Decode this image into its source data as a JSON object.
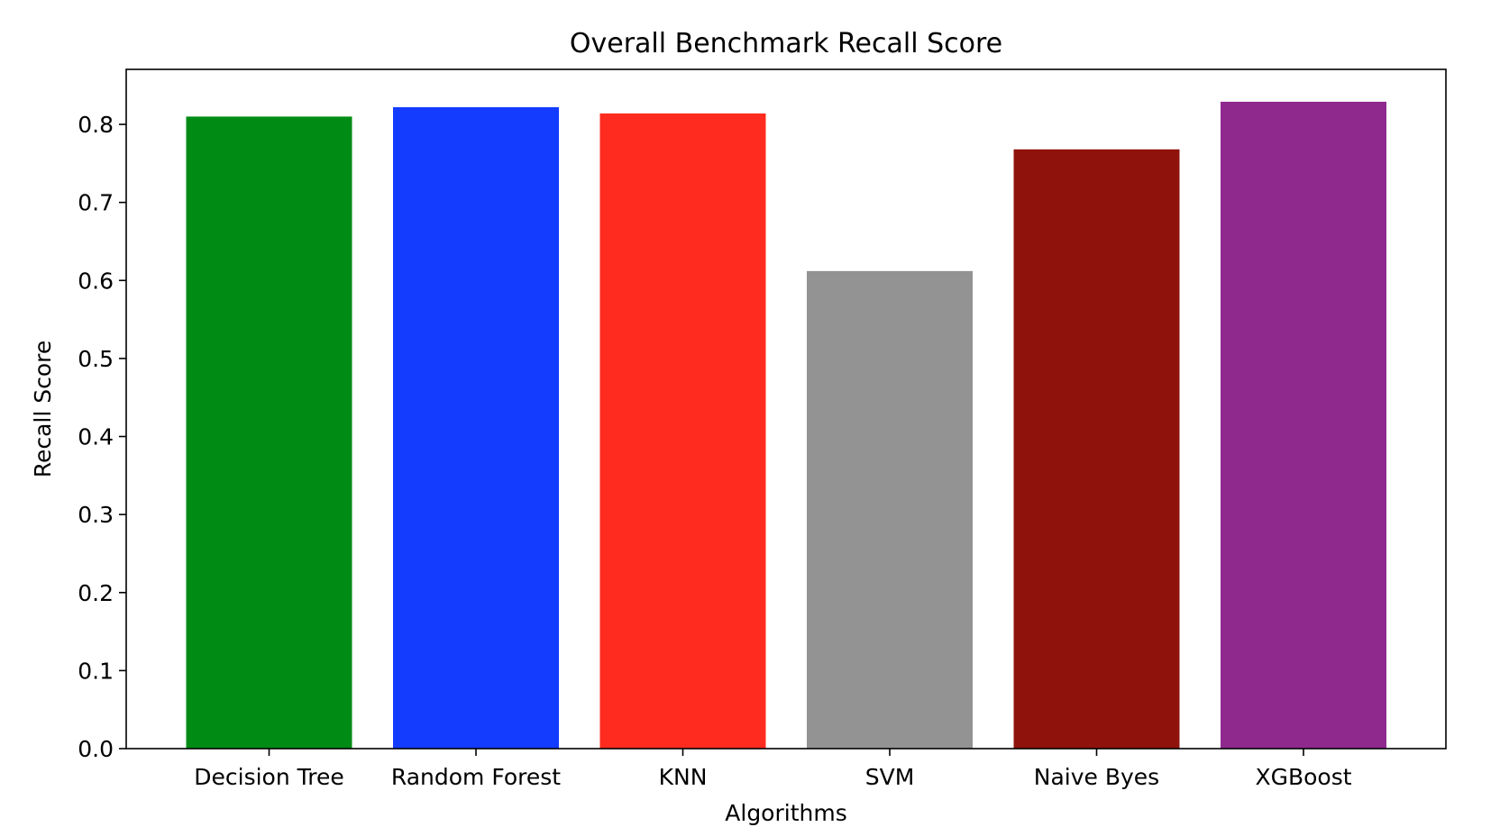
{
  "chart_data": {
    "type": "bar",
    "title": "Overall Benchmark Recall Score",
    "xlabel": "Algorithms",
    "ylabel": "Recall Score",
    "categories": [
      "Decision Tree",
      "Random Forest",
      "KNN",
      "SVM",
      "Naive Byes",
      "XGBoost"
    ],
    "values": [
      0.81,
      0.822,
      0.814,
      0.612,
      0.768,
      0.829
    ],
    "colors": [
      "#008b14",
      "#133cff",
      "#ff2b1e",
      "#939393",
      "#8f130c",
      "#8f298e"
    ],
    "ylim": [
      0,
      0.8705
    ],
    "yticks": [
      0.0,
      0.1,
      0.2,
      0.3,
      0.4,
      0.5,
      0.6,
      0.7,
      0.8
    ],
    "ytick_labels": [
      "0.0",
      "0.1",
      "0.2",
      "0.3",
      "0.4",
      "0.5",
      "0.6",
      "0.7",
      "0.8"
    ],
    "grid": false,
    "legend": "none"
  }
}
